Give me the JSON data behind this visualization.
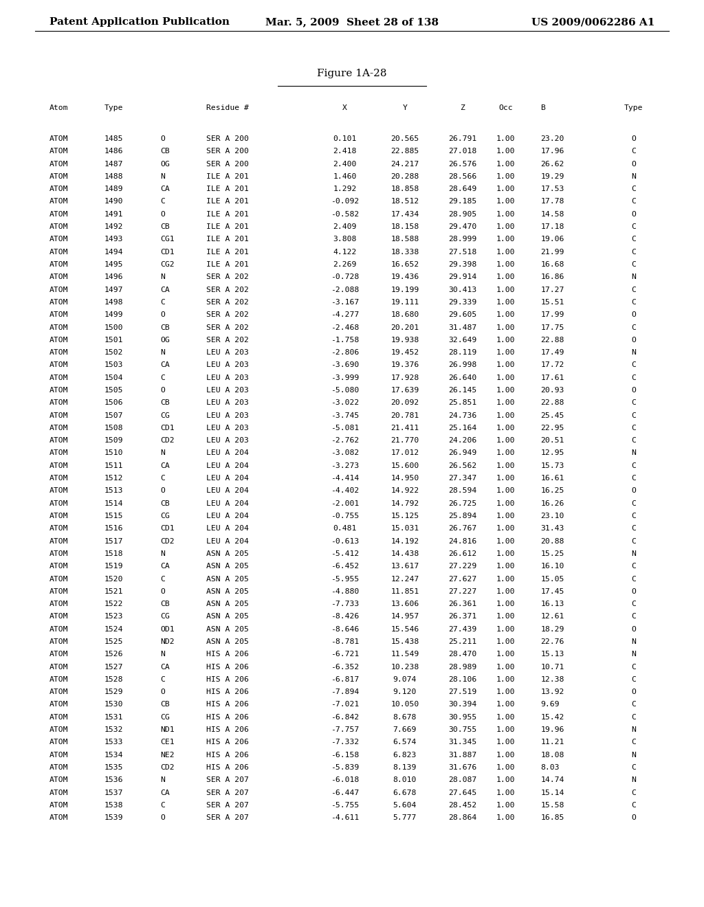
{
  "header_left": "Patent Application Publication",
  "header_mid": "Mar. 5, 2009  Sheet 28 of 138",
  "header_right": "US 2009/0062286 A1",
  "figure_title": "Figure 1A-28",
  "rows": [
    [
      "ATOM",
      "1485",
      "O",
      "SER A 200",
      "0.101",
      "20.565",
      "26.791",
      "1.00",
      "23.20",
      "O"
    ],
    [
      "ATOM",
      "1486",
      "CB",
      "SER A 200",
      "2.418",
      "22.885",
      "27.018",
      "1.00",
      "17.96",
      "C"
    ],
    [
      "ATOM",
      "1487",
      "OG",
      "SER A 200",
      "2.400",
      "24.217",
      "26.576",
      "1.00",
      "26.62",
      "O"
    ],
    [
      "ATOM",
      "1488",
      "N",
      "ILE A 201",
      "1.460",
      "20.288",
      "28.566",
      "1.00",
      "19.29",
      "N"
    ],
    [
      "ATOM",
      "1489",
      "CA",
      "ILE A 201",
      "1.292",
      "18.858",
      "28.649",
      "1.00",
      "17.53",
      "C"
    ],
    [
      "ATOM",
      "1490",
      "C",
      "ILE A 201",
      "-0.092",
      "18.512",
      "29.185",
      "1.00",
      "17.78",
      "C"
    ],
    [
      "ATOM",
      "1491",
      "O",
      "ILE A 201",
      "-0.582",
      "17.434",
      "28.905",
      "1.00",
      "14.58",
      "O"
    ],
    [
      "ATOM",
      "1492",
      "CB",
      "ILE A 201",
      "2.409",
      "18.158",
      "29.470",
      "1.00",
      "17.18",
      "C"
    ],
    [
      "ATOM",
      "1493",
      "CG1",
      "ILE A 201",
      "3.808",
      "18.588",
      "28.999",
      "1.00",
      "19.06",
      "C"
    ],
    [
      "ATOM",
      "1494",
      "CD1",
      "ILE A 201",
      "4.122",
      "18.338",
      "27.518",
      "1.00",
      "21.99",
      "C"
    ],
    [
      "ATOM",
      "1495",
      "CG2",
      "ILE A 201",
      "2.269",
      "16.652",
      "29.398",
      "1.00",
      "16.68",
      "C"
    ],
    [
      "ATOM",
      "1496",
      "N",
      "SER A 202",
      "-0.728",
      "19.436",
      "29.914",
      "1.00",
      "16.86",
      "N"
    ],
    [
      "ATOM",
      "1497",
      "CA",
      "SER A 202",
      "-2.088",
      "19.199",
      "30.413",
      "1.00",
      "17.27",
      "C"
    ],
    [
      "ATOM",
      "1498",
      "C",
      "SER A 202",
      "-3.167",
      "19.111",
      "29.339",
      "1.00",
      "15.51",
      "C"
    ],
    [
      "ATOM",
      "1499",
      "O",
      "SER A 202",
      "-4.277",
      "18.680",
      "29.605",
      "1.00",
      "17.99",
      "O"
    ],
    [
      "ATOM",
      "1500",
      "CB",
      "SER A 202",
      "-2.468",
      "20.201",
      "31.487",
      "1.00",
      "17.75",
      "C"
    ],
    [
      "ATOM",
      "1501",
      "OG",
      "SER A 202",
      "-1.758",
      "19.938",
      "32.649",
      "1.00",
      "22.88",
      "O"
    ],
    [
      "ATOM",
      "1502",
      "N",
      "LEU A 203",
      "-2.806",
      "19.452",
      "28.119",
      "1.00",
      "17.49",
      "N"
    ],
    [
      "ATOM",
      "1503",
      "CA",
      "LEU A 203",
      "-3.690",
      "19.376",
      "26.998",
      "1.00",
      "17.72",
      "C"
    ],
    [
      "ATOM",
      "1504",
      "C",
      "LEU A 203",
      "-3.999",
      "17.928",
      "26.640",
      "1.00",
      "17.61",
      "C"
    ],
    [
      "ATOM",
      "1505",
      "O",
      "LEU A 203",
      "-5.080",
      "17.639",
      "26.145",
      "1.00",
      "20.93",
      "O"
    ],
    [
      "ATOM",
      "1506",
      "CB",
      "LEU A 203",
      "-3.022",
      "20.092",
      "25.851",
      "1.00",
      "22.88",
      "C"
    ],
    [
      "ATOM",
      "1507",
      "CG",
      "LEU A 203",
      "-3.745",
      "20.781",
      "24.736",
      "1.00",
      "25.45",
      "C"
    ],
    [
      "ATOM",
      "1508",
      "CD1",
      "LEU A 203",
      "-5.081",
      "21.411",
      "25.164",
      "1.00",
      "22.95",
      "C"
    ],
    [
      "ATOM",
      "1509",
      "CD2",
      "LEU A 203",
      "-2.762",
      "21.770",
      "24.206",
      "1.00",
      "20.51",
      "C"
    ],
    [
      "ATOM",
      "1510",
      "N",
      "LEU A 204",
      "-3.082",
      "17.012",
      "26.949",
      "1.00",
      "12.95",
      "N"
    ],
    [
      "ATOM",
      "1511",
      "CA",
      "LEU A 204",
      "-3.273",
      "15.600",
      "26.562",
      "1.00",
      "15.73",
      "C"
    ],
    [
      "ATOM",
      "1512",
      "C",
      "LEU A 204",
      "-4.414",
      "14.950",
      "27.347",
      "1.00",
      "16.61",
      "C"
    ],
    [
      "ATOM",
      "1513",
      "O",
      "LEU A 204",
      "-4.402",
      "14.922",
      "28.594",
      "1.00",
      "16.25",
      "O"
    ],
    [
      "ATOM",
      "1514",
      "CB",
      "LEU A 204",
      "-2.001",
      "14.792",
      "26.725",
      "1.00",
      "16.26",
      "C"
    ],
    [
      "ATOM",
      "1515",
      "CG",
      "LEU A 204",
      "-0.755",
      "15.125",
      "25.894",
      "1.00",
      "23.10",
      "C"
    ],
    [
      "ATOM",
      "1516",
      "CD1",
      "LEU A 204",
      "0.481",
      "15.031",
      "26.767",
      "1.00",
      "31.43",
      "C"
    ],
    [
      "ATOM",
      "1517",
      "CD2",
      "LEU A 204",
      "-0.613",
      "14.192",
      "24.816",
      "1.00",
      "20.88",
      "C"
    ],
    [
      "ATOM",
      "1518",
      "N",
      "ASN A 205",
      "-5.412",
      "14.438",
      "26.612",
      "1.00",
      "15.25",
      "N"
    ],
    [
      "ATOM",
      "1519",
      "CA",
      "ASN A 205",
      "-6.452",
      "13.617",
      "27.229",
      "1.00",
      "16.10",
      "C"
    ],
    [
      "ATOM",
      "1520",
      "C",
      "ASN A 205",
      "-5.955",
      "12.247",
      "27.627",
      "1.00",
      "15.05",
      "C"
    ],
    [
      "ATOM",
      "1521",
      "O",
      "ASN A 205",
      "-4.880",
      "11.851",
      "27.227",
      "1.00",
      "17.45",
      "O"
    ],
    [
      "ATOM",
      "1522",
      "CB",
      "ASN A 205",
      "-7.733",
      "13.606",
      "26.361",
      "1.00",
      "16.13",
      "C"
    ],
    [
      "ATOM",
      "1523",
      "CG",
      "ASN A 205",
      "-8.426",
      "14.957",
      "26.371",
      "1.00",
      "12.61",
      "C"
    ],
    [
      "ATOM",
      "1524",
      "OD1",
      "ASN A 205",
      "-8.646",
      "15.546",
      "27.439",
      "1.00",
      "18.29",
      "O"
    ],
    [
      "ATOM",
      "1525",
      "ND2",
      "ASN A 205",
      "-8.781",
      "15.438",
      "25.211",
      "1.00",
      "22.76",
      "N"
    ],
    [
      "ATOM",
      "1526",
      "N",
      "HIS A 206",
      "-6.721",
      "11.549",
      "28.470",
      "1.00",
      "15.13",
      "N"
    ],
    [
      "ATOM",
      "1527",
      "CA",
      "HIS A 206",
      "-6.352",
      "10.238",
      "28.989",
      "1.00",
      "10.71",
      "C"
    ],
    [
      "ATOM",
      "1528",
      "C",
      "HIS A 206",
      "-6.817",
      "9.074",
      "28.106",
      "1.00",
      "12.38",
      "C"
    ],
    [
      "ATOM",
      "1529",
      "O",
      "HIS A 206",
      "-7.894",
      "9.120",
      "27.519",
      "1.00",
      "13.92",
      "O"
    ],
    [
      "ATOM",
      "1530",
      "CB",
      "HIS A 206",
      "-7.021",
      "10.050",
      "30.394",
      "1.00",
      "9.69",
      "C"
    ],
    [
      "ATOM",
      "1531",
      "CG",
      "HIS A 206",
      "-6.842",
      "8.678",
      "30.955",
      "1.00",
      "15.42",
      "C"
    ],
    [
      "ATOM",
      "1532",
      "ND1",
      "HIS A 206",
      "-7.757",
      "7.669",
      "30.755",
      "1.00",
      "19.96",
      "N"
    ],
    [
      "ATOM",
      "1533",
      "CE1",
      "HIS A 206",
      "-7.332",
      "6.574",
      "31.345",
      "1.00",
      "11.21",
      "C"
    ],
    [
      "ATOM",
      "1534",
      "NE2",
      "HIS A 206",
      "-6.158",
      "6.823",
      "31.887",
      "1.00",
      "18.08",
      "N"
    ],
    [
      "ATOM",
      "1535",
      "CD2",
      "HIS A 206",
      "-5.839",
      "8.139",
      "31.676",
      "1.00",
      "8.03",
      "C"
    ],
    [
      "ATOM",
      "1536",
      "N",
      "SER A 207",
      "-6.018",
      "8.010",
      "28.087",
      "1.00",
      "14.74",
      "N"
    ],
    [
      "ATOM",
      "1537",
      "CA",
      "SER A 207",
      "-6.447",
      "6.678",
      "27.645",
      "1.00",
      "15.14",
      "C"
    ],
    [
      "ATOM",
      "1538",
      "C",
      "SER A 207",
      "-5.755",
      "5.604",
      "28.452",
      "1.00",
      "15.58",
      "C"
    ],
    [
      "ATOM",
      "1539",
      "O",
      "SER A 207",
      "-4.611",
      "5.777",
      "28.864",
      "1.00",
      "16.85",
      "O"
    ]
  ],
  "background_color": "#ffffff",
  "text_color": "#000000",
  "font_size": 8.2,
  "header_font_size": 11,
  "title_font_size": 11,
  "fig_width": 10.24,
  "fig_height": 13.2
}
